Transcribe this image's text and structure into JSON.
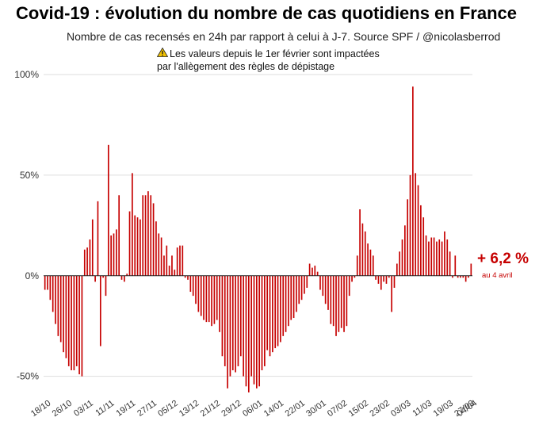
{
  "header": {
    "title": "Covid-19 : évolution du nombre de cas quotidiens en France",
    "subtitle": "Nombre de cas recensés en 24h par rapport à celui à J-7. Source SPF / @nicolasberrod",
    "note_line1": "Les valeurs depuis le 1er février sont impactées",
    "note_line2": "par l'allègement des règles de dépistage",
    "note_icon": "warning-icon"
  },
  "annotation": {
    "value": "+ 6,2 %",
    "date": "au 4 avril"
  },
  "colors": {
    "bars": "#c60000",
    "grid": "#dddddd",
    "zero_line": "#222222",
    "annotation": "#c60000"
  },
  "chart_data": {
    "type": "bar",
    "title": "Covid-19 : évolution du nombre de cas quotidiens en France",
    "subtitle": "Nombre de cas recensés en 24h par rapport à celui à J-7. Source SPF / @nicolasberrod",
    "ylim": [
      -60,
      100
    ],
    "yticks": [
      100,
      50,
      0,
      -50
    ],
    "ytick_labels": [
      "100%",
      "50%",
      "0%",
      "-50%"
    ],
    "grid": true,
    "xtick_labels": [
      "18/10",
      "26/10",
      "03/11",
      "11/11",
      "19/11",
      "27/11",
      "05/12",
      "13/12",
      "21/12",
      "29/12",
      "06/01",
      "14/01",
      "22/01",
      "30/01",
      "07/02",
      "15/02",
      "23/02",
      "03/03",
      "11/03",
      "19/03",
      "27/03",
      "04/04"
    ],
    "xtick_index_step": 8,
    "start_date": "18/10",
    "end_date": "04/04",
    "series": [
      {
        "values": [
          -7,
          -7,
          -12,
          -18,
          -24,
          -30,
          -33,
          -38,
          -41,
          -45,
          -47,
          -47,
          -45,
          -49,
          -50,
          13,
          14,
          18,
          28,
          -3,
          37,
          -35,
          -1,
          -10,
          65,
          20,
          21,
          23,
          40,
          -2,
          -3,
          1,
          32,
          51,
          30,
          29,
          28,
          40,
          40,
          42,
          40,
          36,
          27,
          21,
          19,
          10,
          15,
          5,
          10,
          3,
          14,
          15,
          15,
          -1,
          -2,
          -8,
          -10,
          -14,
          -18,
          -20,
          -22,
          -23,
          -23,
          -25,
          -24,
          -22,
          -28,
          -40,
          -45,
          -56,
          -50,
          -47,
          -48,
          -45,
          -40,
          -50,
          -55,
          -58,
          -50,
          -54,
          -56,
          -55,
          -47,
          -45,
          -37,
          -40,
          -38,
          -36,
          -35,
          -33,
          -30,
          -28,
          -25,
          -22,
          -21,
          -18,
          -14,
          -12,
          -9,
          -6,
          6,
          4,
          5,
          2,
          -7,
          -10,
          -14,
          -17,
          -24,
          -25,
          -30,
          -28,
          -26,
          -28,
          -25,
          -10,
          -3,
          -1,
          10,
          33,
          26,
          22,
          16,
          13,
          10,
          -2,
          -4,
          -7,
          -3,
          -4,
          -1,
          -18,
          -6,
          6,
          12,
          18,
          25,
          38,
          50,
          94,
          51,
          45,
          35,
          29,
          20,
          17,
          19,
          19,
          17,
          18,
          17,
          22,
          18,
          12,
          -1,
          10,
          -1,
          -1,
          -1,
          -3,
          -1,
          6
        ]
      }
    ]
  }
}
